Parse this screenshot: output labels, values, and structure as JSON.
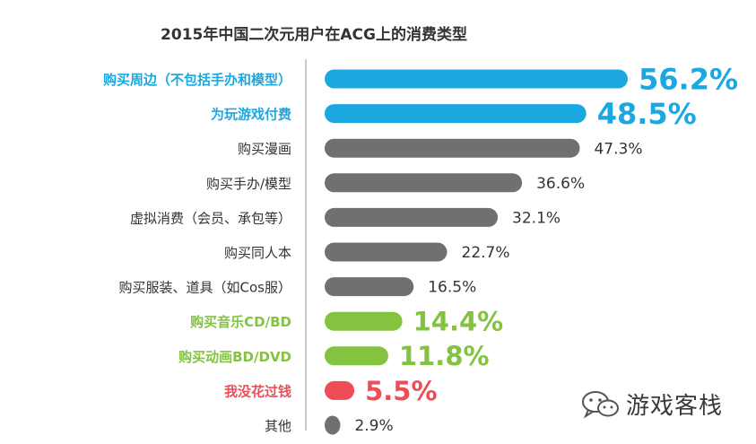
{
  "chart_data": {
    "type": "bar",
    "orientation": "horizontal",
    "title": "2015年中国二次元用户在ACG上的消费类型",
    "categories": [
      "购买周边（不包括手办和模型）",
      "为玩游戏付费",
      "购买漫画",
      "购买手办/模型",
      "虚拟消费（会员、承包等）",
      "购买同人本",
      "购买服装、道具（如Cos服）",
      "购买音乐CD/BD",
      "购买动画BD/DVD",
      "我没花过钱",
      "其他"
    ],
    "values": [
      56.2,
      48.5,
      47.3,
      36.6,
      32.1,
      22.7,
      16.5,
      14.4,
      11.8,
      5.5,
      2.9
    ],
    "value_labels": [
      "56.2%",
      "48.5%",
      "47.3%",
      "36.6%",
      "32.1%",
      "22.7%",
      "16.5%",
      "14.4%",
      "11.8%",
      "5.5%",
      "2.9%"
    ],
    "groups": [
      "blue",
      "blue",
      "gray",
      "gray",
      "gray",
      "gray",
      "gray",
      "green",
      "green",
      "red",
      "gray"
    ],
    "colors": {
      "blue": "#1ba8e0",
      "gray": "#707070",
      "green": "#84c340",
      "red": "#ec4d57",
      "axis": "#b8b8b8",
      "text": "#333333"
    },
    "xlim": [
      0,
      60
    ],
    "grid": false,
    "legend": "none"
  },
  "watermark": {
    "text": "游戏客栈",
    "icon": "wechat-icon"
  }
}
